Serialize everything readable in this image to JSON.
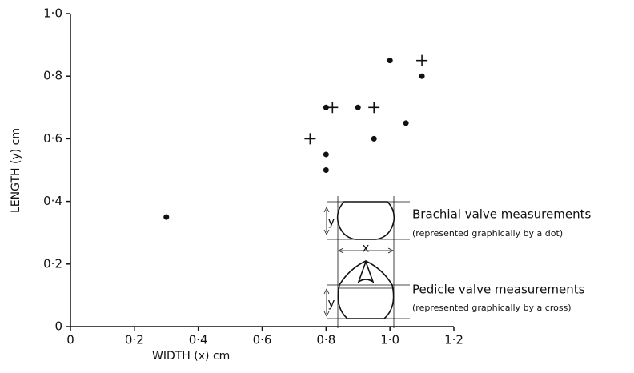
{
  "chart_data": {
    "type": "scatter",
    "xlabel": "WIDTH (x) cm",
    "ylabel": "LENGTH (y) cm",
    "xlim": [
      0,
      1.2
    ],
    "ylim": [
      0,
      1.0
    ],
    "xticks": [
      0,
      {
        "value": 0.2,
        "label": "0·2"
      },
      {
        "value": 0.4,
        "label": "0·4"
      },
      {
        "value": 0.6,
        "label": "0·6"
      },
      {
        "value": 0.8,
        "label": "0·8"
      },
      {
        "value": 1.0,
        "label": "1·0"
      },
      {
        "value": 1.2,
        "label": "1·2"
      }
    ],
    "yticks": [
      0,
      {
        "value": 0.2,
        "label": "0·2"
      },
      {
        "value": 0.4,
        "label": "0·4"
      },
      {
        "value": 0.6,
        "label": "0·6"
      },
      {
        "value": 0.8,
        "label": "0·8"
      },
      {
        "value": 1.0,
        "label": "1·0"
      }
    ],
    "series": [
      {
        "name": "Brachial valve measurements",
        "note": "(represented graphically by a dot)",
        "marker": "dot",
        "color": "#111111",
        "x": [
          0.3,
          0.8,
          0.9,
          0.8,
          0.8,
          0.95,
          1.0,
          1.1,
          1.05
        ],
        "values": [
          0.35,
          0.7,
          0.7,
          0.55,
          0.5,
          0.6,
          0.85,
          0.8,
          0.65
        ]
      },
      {
        "name": "Pedicle valve measurements",
        "note": "(represented graphically by a cross)",
        "marker": "cross",
        "color": "#111111",
        "x": [
          0.75,
          0.82,
          0.95,
          1.1
        ],
        "values": [
          0.6,
          0.7,
          0.7,
          0.85
        ]
      }
    ],
    "inset_labels": [
      "y",
      "x",
      "y"
    ]
  }
}
